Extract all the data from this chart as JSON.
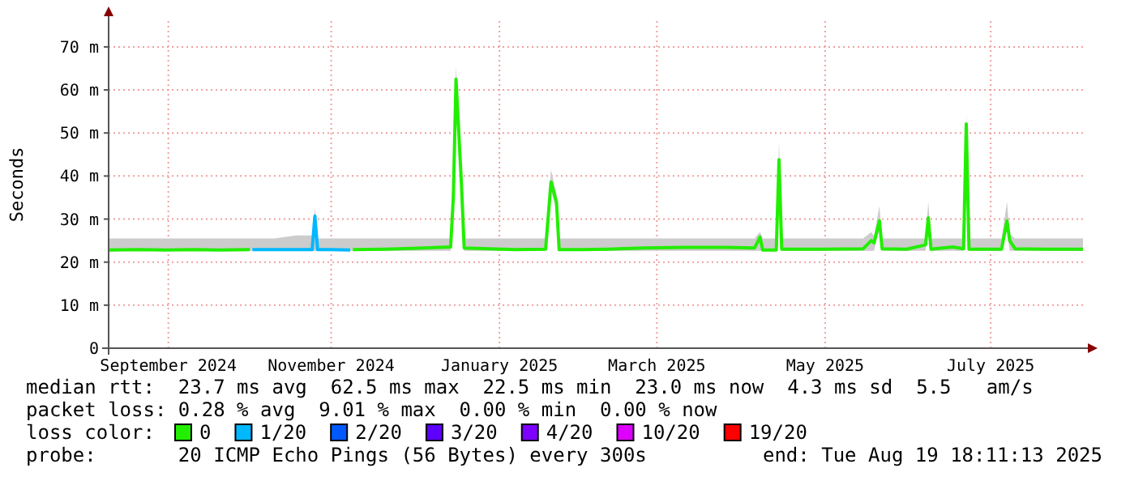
{
  "chart_data": {
    "type": "line",
    "ylabel": "Seconds",
    "legend_title": "loss color:",
    "legend": "bottom",
    "grid": true,
    "line_style": "solid",
    "xlim": [
      "2024-08-25",
      "2025-08-19"
    ],
    "xticks": [
      {
        "value": "2024-09-16",
        "label": "September 2024"
      },
      {
        "value": "2024-11-15",
        "label": "November 2024"
      },
      {
        "value": "2025-01-16",
        "label": "January 2025"
      },
      {
        "value": "2025-03-15",
        "label": "March 2025"
      },
      {
        "value": "2025-05-16",
        "label": "May 2025"
      },
      {
        "value": "2025-07-16",
        "label": "July 2025"
      }
    ],
    "ylim": [
      0,
      76
    ],
    "yticks": [
      0,
      {
        "value": 10,
        "label": "10 m"
      },
      {
        "value": 20,
        "label": "20 m"
      },
      {
        "value": 30,
        "label": "30 m"
      },
      {
        "value": 40,
        "label": "40 m"
      },
      {
        "value": 50,
        "label": "50 m"
      },
      {
        "value": 60,
        "label": "60 m"
      },
      {
        "value": 70,
        "label": "70 m"
      }
    ],
    "series": [
      {
        "name": "0",
        "color": "#22ee00",
        "x": [
          "2024-08-25",
          "2024-09-05",
          "2024-09-15",
          "2024-09-25",
          "2024-10-05",
          "2024-10-16",
          "2024-10-17",
          "2024-10-25",
          "2024-11-02",
          "2024-11-08",
          "2024-11-09",
          "2024-11-10",
          "2024-11-15",
          "2024-11-22",
          "2024-11-23",
          "2024-12-05",
          "2024-12-15",
          "2024-12-25",
          "2024-12-29",
          "2024-12-30",
          "2024-12-31",
          "2025-01-02",
          "2025-01-03",
          "2025-01-12",
          "2025-01-22",
          "2025-02-02",
          "2025-02-04",
          "2025-02-06",
          "2025-02-07",
          "2025-02-15",
          "2025-02-25",
          "2025-03-10",
          "2025-03-25",
          "2025-04-10",
          "2025-04-20",
          "2025-04-22",
          "2025-04-23",
          "2025-04-28",
          "2025-04-29",
          "2025-04-30",
          "2025-05-15",
          "2025-05-30",
          "2025-06-02",
          "2025-06-03",
          "2025-06-05",
          "2025-06-06",
          "2025-06-15",
          "2025-06-22",
          "2025-06-23",
          "2025-06-24",
          "2025-07-02",
          "2025-07-06",
          "2025-07-07",
          "2025-07-08",
          "2025-07-20",
          "2025-07-22",
          "2025-07-23",
          "2025-07-25",
          "2025-08-05",
          "2025-08-19"
        ],
        "values": [
          22.8,
          22.9,
          22.8,
          22.9,
          22.8,
          22.9,
          null,
          null,
          null,
          null,
          null,
          null,
          null,
          null,
          22.9,
          23,
          23.2,
          23.4,
          23.5,
          34.9,
          62.5,
          38.1,
          23.3,
          23.1,
          22.9,
          23,
          38.6,
          34,
          22.9,
          22.9,
          23,
          23.3,
          23.4,
          23.4,
          23.3,
          25.8,
          22.8,
          22.8,
          43.8,
          23,
          23,
          23.1,
          25,
          24.5,
          29.6,
          23.1,
          23,
          24,
          30.3,
          23,
          23.5,
          23.1,
          52.1,
          23,
          23,
          29.6,
          25,
          23.1,
          23,
          23
        ],
        "lower": [
          22.6,
          22.6,
          22.6,
          22.6,
          22.6,
          22.6,
          22.6,
          22.6,
          22.6,
          22.6,
          22.6,
          22.6,
          22.6,
          22.6,
          22.6,
          22.6,
          22.6,
          22.6,
          22.6,
          32.9,
          60.5,
          36.1,
          22.6,
          22.6,
          22.6,
          22.6,
          36.6,
          32,
          22.6,
          22.6,
          22.6,
          22.6,
          22.6,
          22.6,
          22.6,
          22.6,
          22.6,
          22.6,
          41.8,
          22.6,
          22.6,
          22.6,
          22.6,
          22.6,
          27.6,
          22.6,
          22.6,
          22.6,
          28.3,
          22.6,
          22.6,
          22.6,
          50.1,
          22.6,
          22.6,
          27.6,
          22.6,
          22.6,
          22.6,
          22.6
        ],
        "upper": [
          25.5,
          25.5,
          25.5,
          25.5,
          25.5,
          25.5,
          25.5,
          25.5,
          26.2,
          26.2,
          32.5,
          25.5,
          25.5,
          25.5,
          25.5,
          25.5,
          25.5,
          25.5,
          25.5,
          36,
          65.5,
          42,
          25.5,
          25.5,
          25.5,
          25.5,
          41.5,
          36,
          25.5,
          25.5,
          25.5,
          25.5,
          25.5,
          25.5,
          25.5,
          27,
          25.5,
          25.5,
          48,
          25.5,
          25.5,
          25.5,
          27,
          26,
          33,
          25.5,
          25.5,
          25.5,
          34,
          25.5,
          25.5,
          25.5,
          54.5,
          25.5,
          25.5,
          34,
          26.5,
          25.5,
          25.5,
          25.5
        ]
      },
      {
        "name": "1/20",
        "color": "#00b8ff",
        "x": [
          "2024-10-17",
          "2024-10-25",
          "2024-11-02",
          "2024-11-08",
          "2024-11-09",
          "2024-11-10",
          "2024-11-15",
          "2024-11-22"
        ],
        "values": [
          22.9,
          22.9,
          22.9,
          22.9,
          30.7,
          22.9,
          22.9,
          22.8
        ]
      },
      {
        "name": "2/20",
        "color": "#0059ff"
      },
      {
        "name": "3/20",
        "color": "#5e00ff"
      },
      {
        "name": "4/20",
        "color": "#7e00ff"
      },
      {
        "name": "10/20",
        "color": "#dd00ff"
      },
      {
        "name": "19/20",
        "color": "#ff0000"
      }
    ],
    "annotations": [
      "median rtt:  23.7 ms avg  62.5 ms max  22.5 ms min  23.0 ms now  4.3 ms sd  5.5   am/s",
      "packet loss: 0.28 % avg  9.01 % max  0.00 % min  0.00 % now",
      "probe:       20 ICMP Echo Pings (56 Bytes) every 300s",
      "end: Tue Aug 19 18:11:13 2025"
    ]
  }
}
